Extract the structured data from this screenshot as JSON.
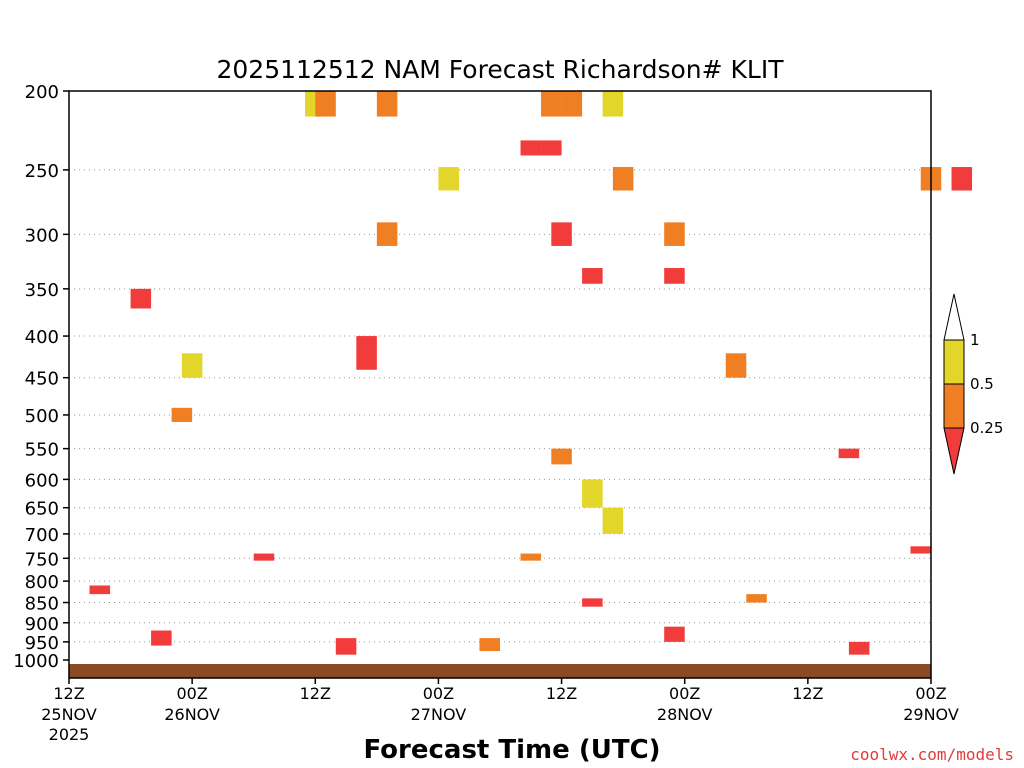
{
  "chart_data": {
    "type": "heatmap",
    "title": "2025112512 NAM Forecast Richardson# KLIT",
    "xlabel": "Forecast Time (UTC)",
    "ylabel": "",
    "credit": "coolwx.com/models",
    "x_ticks": [
      {
        "hour": 0,
        "top": "12Z",
        "mid": "25NOV",
        "bot": "2025"
      },
      {
        "hour": 12,
        "top": "00Z",
        "mid": "26NOV",
        "bot": ""
      },
      {
        "hour": 24,
        "top": "12Z",
        "mid": "",
        "bot": ""
      },
      {
        "hour": 36,
        "top": "00Z",
        "mid": "27NOV",
        "bot": ""
      },
      {
        "hour": 48,
        "top": "12Z",
        "mid": "",
        "bot": ""
      },
      {
        "hour": 60,
        "top": "00Z",
        "mid": "28NOV",
        "bot": ""
      },
      {
        "hour": 72,
        "top": "12Z",
        "mid": "",
        "bot": ""
      },
      {
        "hour": 84,
        "top": "00Z",
        "mid": "29NOV",
        "bot": ""
      }
    ],
    "y_ticks": [
      200,
      250,
      300,
      350,
      400,
      450,
      500,
      550,
      600,
      650,
      700,
      750,
      800,
      850,
      900,
      950,
      1000
    ],
    "ylim": [
      200,
      1000
    ],
    "legend_ticks": [
      "1",
      "0.5",
      "0.25"
    ],
    "colors": {
      "ri_lt_025": "#f23b3b",
      "ri_025_05": "#f07e22",
      "ri_05_1": "#e3d62b",
      "ground": "#8b4a25"
    },
    "cells": [
      {
        "t": 23,
        "p0": 200,
        "p1": 215,
        "c": "ri_05_1"
      },
      {
        "t": 24,
        "p0": 200,
        "p1": 215,
        "c": "ri_025_05"
      },
      {
        "t": 30,
        "p0": 200,
        "p1": 215,
        "c": "ri_025_05"
      },
      {
        "t": 46,
        "p0": 200,
        "p1": 215,
        "c": "ri_025_05"
      },
      {
        "t": 48,
        "p0": 200,
        "p1": 215,
        "c": "ri_025_05"
      },
      {
        "t": 52,
        "p0": 200,
        "p1": 215,
        "c": "ri_05_1"
      },
      {
        "t": 44,
        "p0": 230,
        "p1": 240,
        "c": "ri_lt_025"
      },
      {
        "t": 46,
        "p0": 230,
        "p1": 240,
        "c": "ri_lt_025"
      },
      {
        "t": 36,
        "p0": 248,
        "p1": 265,
        "c": "ri_05_1"
      },
      {
        "t": 53,
        "p0": 248,
        "p1": 265,
        "c": "ri_025_05"
      },
      {
        "t": 83,
        "p0": 248,
        "p1": 265,
        "c": "ri_025_05"
      },
      {
        "t": 86,
        "p0": 248,
        "p1": 265,
        "c": "ri_lt_025"
      },
      {
        "t": 30,
        "p0": 290,
        "p1": 310,
        "c": "ri_025_05"
      },
      {
        "t": 47,
        "p0": 290,
        "p1": 310,
        "c": "ri_lt_025"
      },
      {
        "t": 58,
        "p0": 290,
        "p1": 310,
        "c": "ri_025_05"
      },
      {
        "t": 6,
        "p0": 350,
        "p1": 370,
        "c": "ri_lt_025"
      },
      {
        "t": 50,
        "p0": 330,
        "p1": 345,
        "c": "ri_lt_025"
      },
      {
        "t": 58,
        "p0": 330,
        "p1": 345,
        "c": "ri_lt_025"
      },
      {
        "t": 11,
        "p0": 420,
        "p1": 450,
        "c": "ri_05_1"
      },
      {
        "t": 28,
        "p0": 400,
        "p1": 440,
        "c": "ri_lt_025"
      },
      {
        "t": 64,
        "p0": 420,
        "p1": 450,
        "c": "ri_025_05"
      },
      {
        "t": 10,
        "p0": 490,
        "p1": 510,
        "c": "ri_025_05"
      },
      {
        "t": 47,
        "p0": 550,
        "p1": 575,
        "c": "ri_025_05"
      },
      {
        "t": 75,
        "p0": 550,
        "p1": 565,
        "c": "ri_lt_025"
      },
      {
        "t": 50,
        "p0": 600,
        "p1": 650,
        "c": "ri_05_1"
      },
      {
        "t": 52,
        "p0": 650,
        "p1": 700,
        "c": "ri_05_1"
      },
      {
        "t": 18,
        "p0": 740,
        "p1": 755,
        "c": "ri_lt_025"
      },
      {
        "t": 44,
        "p0": 740,
        "p1": 755,
        "c": "ri_025_05"
      },
      {
        "t": 82,
        "p0": 725,
        "p1": 740,
        "c": "ri_lt_025"
      },
      {
        "t": 2,
        "p0": 810,
        "p1": 830,
        "c": "ri_lt_025"
      },
      {
        "t": 50,
        "p0": 840,
        "p1": 860,
        "c": "ri_lt_025"
      },
      {
        "t": 66,
        "p0": 830,
        "p1": 850,
        "c": "ri_025_05"
      },
      {
        "t": 8,
        "p0": 920,
        "p1": 960,
        "c": "ri_lt_025"
      },
      {
        "t": 26,
        "p0": 940,
        "p1": 985,
        "c": "ri_lt_025"
      },
      {
        "t": 40,
        "p0": 940,
        "p1": 975,
        "c": "ri_025_05"
      },
      {
        "t": 58,
        "p0": 910,
        "p1": 950,
        "c": "ri_lt_025"
      },
      {
        "t": 76,
        "p0": 950,
        "p1": 985,
        "c": "ri_lt_025"
      }
    ]
  }
}
